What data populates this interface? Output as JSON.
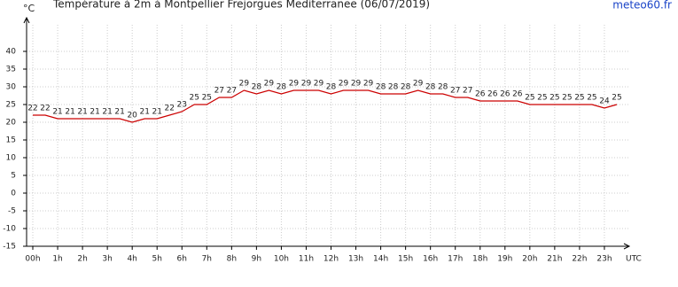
{
  "chart_data": {
    "type": "line",
    "title": "Température à 2m à Montpellier Frejorgues Mediterranee (06/07/2019)",
    "source": "meteo60.fr",
    "y_label": "°C",
    "x_label": "UTC",
    "x": [
      0,
      0.5,
      1,
      1.5,
      2,
      2.5,
      3,
      3.5,
      4,
      4.5,
      5,
      5.5,
      6,
      6.5,
      7,
      7.5,
      8,
      8.5,
      9,
      9.5,
      10,
      10.5,
      11,
      11.5,
      12,
      12.5,
      13,
      13.5,
      14,
      14.5,
      15,
      15.5,
      16,
      16.5,
      17,
      17.5,
      18,
      18.5,
      19,
      19.5,
      20,
      20.5,
      21,
      21.5,
      22,
      22.5,
      23,
      23.5
    ],
    "series": [
      {
        "name": "Température",
        "color": "#cc0000",
        "values": [
          22,
          22,
          21,
          21,
          21,
          21,
          21,
          21,
          20,
          21,
          21,
          22,
          23,
          25,
          25,
          27,
          27,
          29,
          28,
          29,
          28,
          29,
          29,
          29,
          28,
          29,
          29,
          29,
          28,
          28,
          28,
          29,
          28,
          28,
          27,
          27,
          26,
          26,
          26,
          26,
          25,
          25,
          25,
          25,
          25,
          25,
          24,
          25
        ]
      }
    ],
    "xlim": [
      -0.25,
      24
    ],
    "xticks": [
      {
        "value": 0,
        "label": "00h"
      },
      {
        "value": 1,
        "label": "1h"
      },
      {
        "value": 2,
        "label": "2h"
      },
      {
        "value": 3,
        "label": "3h"
      },
      {
        "value": 4,
        "label": "4h"
      },
      {
        "value": 5,
        "label": "5h"
      },
      {
        "value": 6,
        "label": "6h"
      },
      {
        "value": 7,
        "label": "7h"
      },
      {
        "value": 8,
        "label": "8h"
      },
      {
        "value": 9,
        "label": "9h"
      },
      {
        "value": 10,
        "label": "10h"
      },
      {
        "value": 11,
        "label": "11h"
      },
      {
        "value": 12,
        "label": "12h"
      },
      {
        "value": 13,
        "label": "13h"
      },
      {
        "value": 14,
        "label": "14h"
      },
      {
        "value": 15,
        "label": "15h"
      },
      {
        "value": 16,
        "label": "16h"
      },
      {
        "value": 17,
        "label": "17h"
      },
      {
        "value": 18,
        "label": "18h"
      },
      {
        "value": 19,
        "label": "19h"
      },
      {
        "value": 20,
        "label": "20h"
      },
      {
        "value": 21,
        "label": "21h"
      },
      {
        "value": 22,
        "label": "22h"
      },
      {
        "value": 23,
        "label": "23h"
      }
    ],
    "ylim": [
      -15,
      47.5
    ],
    "yticks": [
      -15,
      -10,
      -5,
      0,
      5,
      10,
      15,
      20,
      25,
      30,
      35,
      40
    ],
    "grid": true
  }
}
